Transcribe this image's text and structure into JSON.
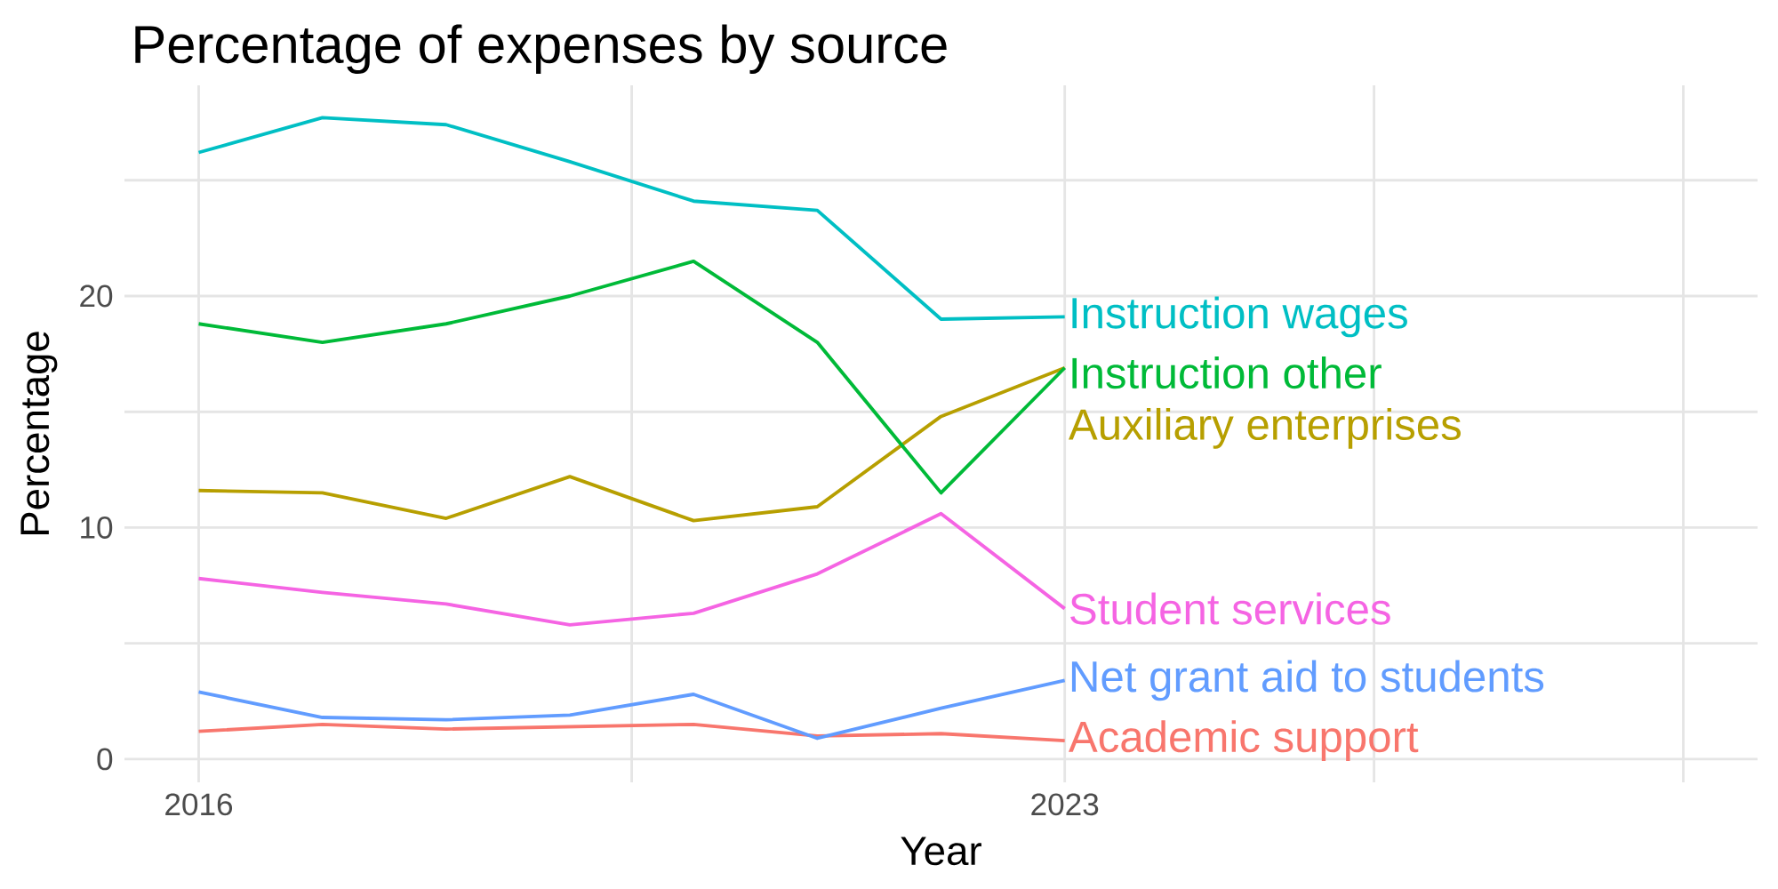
{
  "chart_data": {
    "type": "line",
    "title": "Percentage of expenses by source",
    "xlabel": "Year",
    "ylabel": "Percentage",
    "x": [
      2016,
      2017,
      2018,
      2019,
      2020,
      2021,
      2022,
      2023
    ],
    "series": [
      {
        "name": "Academic support",
        "color": "#f8766d",
        "values": [
          1.2,
          1.5,
          1.3,
          1.4,
          1.5,
          1.0,
          1.1,
          0.8
        ]
      },
      {
        "name": "Auxiliary enterprises",
        "color": "#b79f00",
        "values": [
          11.6,
          11.5,
          10.4,
          12.2,
          10.3,
          10.9,
          14.8,
          16.9
        ]
      },
      {
        "name": "Instruction other",
        "color": "#00ba38",
        "values": [
          18.8,
          18.0,
          18.8,
          20.0,
          21.5,
          18.0,
          11.5,
          16.9
        ]
      },
      {
        "name": "Instruction wages",
        "color": "#00bfc4",
        "values": [
          26.2,
          27.7,
          27.4,
          25.8,
          24.1,
          23.7,
          19.0,
          19.1
        ]
      },
      {
        "name": "Net grant aid to students",
        "color": "#619cff",
        "values": [
          2.9,
          1.8,
          1.7,
          1.9,
          2.8,
          0.9,
          2.2,
          3.4
        ]
      },
      {
        "name": "Student services",
        "color": "#f564e3",
        "values": [
          7.8,
          7.2,
          6.7,
          5.8,
          6.3,
          8.0,
          10.6,
          6.5
        ]
      }
    ],
    "xlim": [
      2015.4,
      2028.6
    ],
    "ylim": [
      -1.0,
      29.1
    ],
    "xticks": [
      2016,
      {
        "value": 2019.5,
        "label": null
      },
      2023,
      {
        "value": 2025.5,
        "label": null
      },
      {
        "value": 2028,
        "label": null
      }
    ],
    "yticks": [
      0,
      {
        "value": 5,
        "label": null
      },
      10,
      {
        "value": 15,
        "label": null
      },
      20,
      {
        "value": 25,
        "label": null
      }
    ],
    "grid": true
  }
}
